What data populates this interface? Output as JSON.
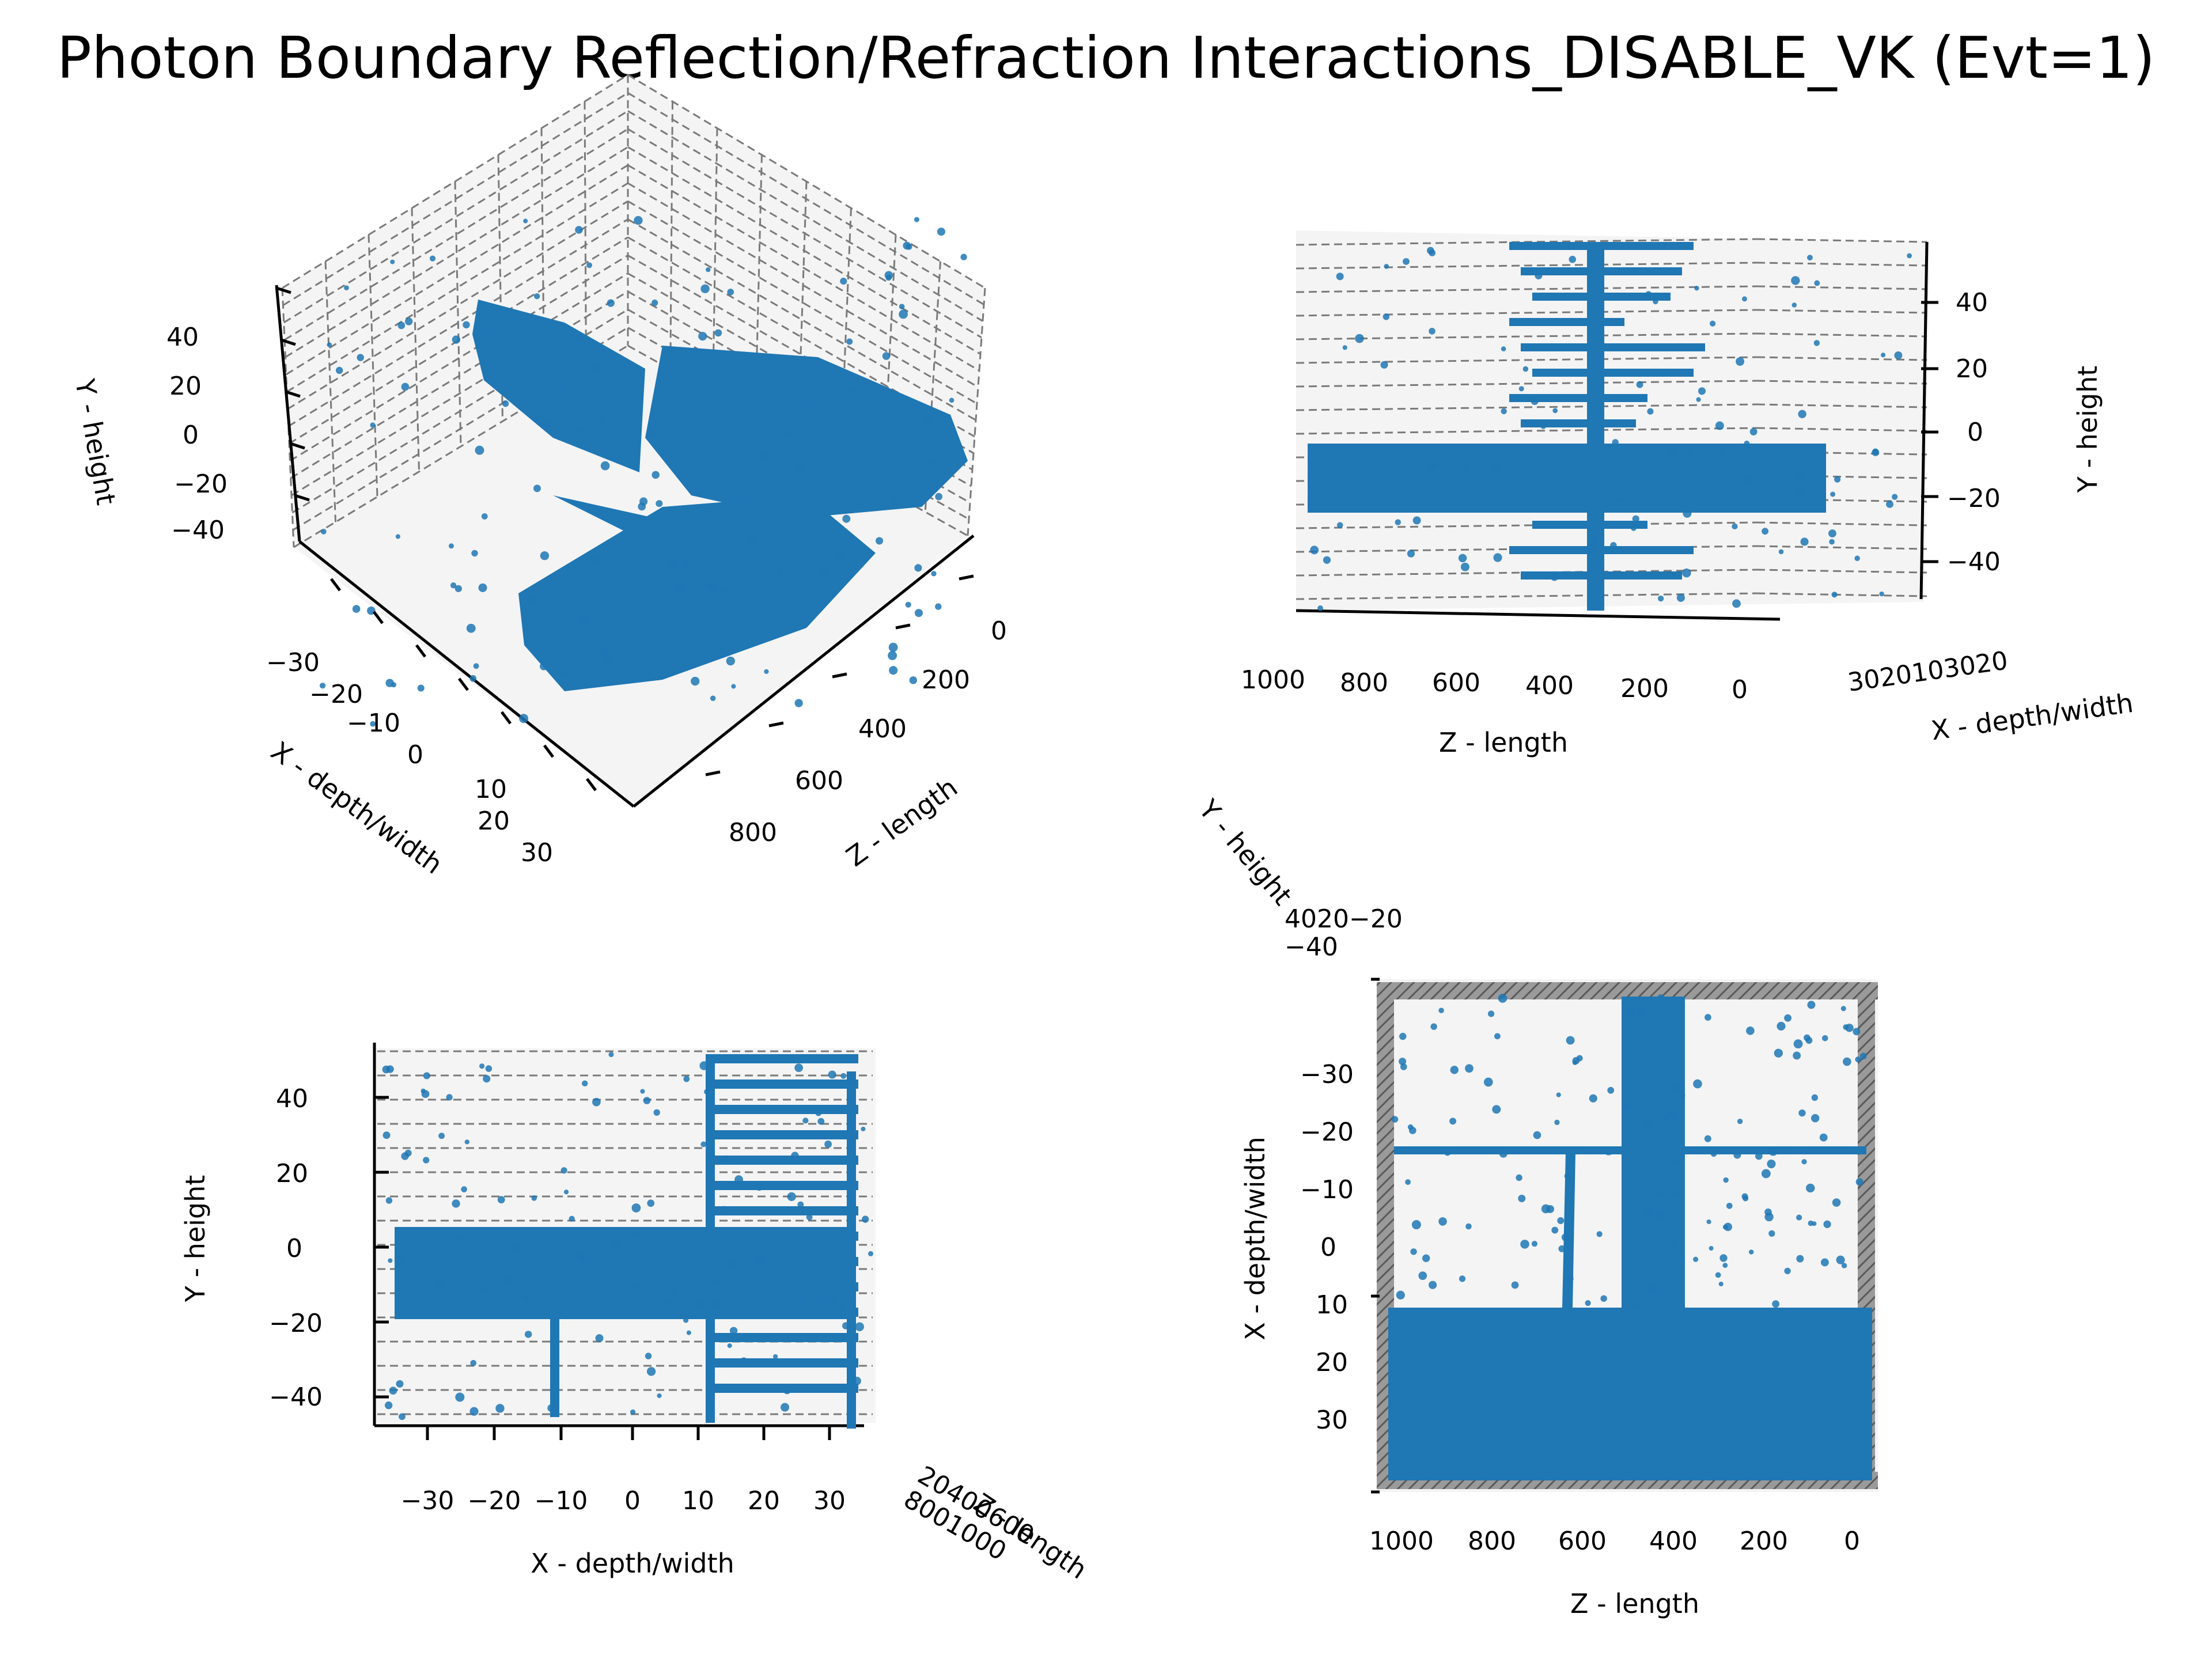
{
  "figure": {
    "title": "Photon Boundary Reflection/Refraction Interactions_DISABLE_VK (Evt=1)"
  },
  "colors": {
    "points": "#1f77b4",
    "pane": "#f4f4f4",
    "grid": "#7a7a7a"
  },
  "chart_data": [
    {
      "type": "scatter",
      "view": "3d-perspective",
      "xlabel": "X - depth/width",
      "ylabel": "Y - height",
      "zlabel": "Z - length",
      "x_ticks": [
        "−30",
        "−20",
        "−10",
        "0",
        "10",
        "20",
        "30"
      ],
      "y_ticks": [
        "40",
        "20",
        "0",
        "−20",
        "−40"
      ],
      "z_ticks": [
        "0",
        "200",
        "400",
        "600",
        "800"
      ],
      "xlim": [
        -35,
        35
      ],
      "ylim": [
        -50,
        50
      ],
      "zlim": [
        0,
        1000
      ]
    },
    {
      "type": "scatter",
      "view": "3d-side (Z vs Y)",
      "xlabel": "Z - length",
      "ylabel": "Y - height",
      "zlabel": "X - depth/width",
      "z_ticks": [
        "1000",
        "800",
        "600",
        "400",
        "200",
        "0"
      ],
      "y_ticks": [
        "40",
        "20",
        "0",
        "−20",
        "−40"
      ],
      "x_ticks_text": "3020103020",
      "xlim": [
        -35,
        35
      ],
      "ylim": [
        -50,
        50
      ],
      "zlim": [
        0,
        1000
      ]
    },
    {
      "type": "scatter",
      "view": "3d-front (X vs Y)",
      "xlabel": "X - depth/width",
      "ylabel": "Y - height",
      "zlabel": "Z - length",
      "x_ticks": [
        "−30",
        "−20",
        "−10",
        "0",
        "10",
        "20",
        "30"
      ],
      "y_ticks": [
        "40",
        "20",
        "0",
        "−20",
        "−40"
      ],
      "z_ticks_text": "20400600\n8001000",
      "xlim": [
        -35,
        35
      ],
      "ylim": [
        -50,
        50
      ],
      "zlim": [
        0,
        1000
      ]
    },
    {
      "type": "scatter",
      "view": "3d-top (Z vs X)",
      "xlabel": "Z - length",
      "ylabel": "X - depth/width",
      "zlabel": "Y - height",
      "z_ticks": [
        "1000",
        "800",
        "600",
        "400",
        "200",
        "0"
      ],
      "x_ticks": [
        "−30",
        "−20",
        "−10",
        "0",
        "10",
        "20",
        "30"
      ],
      "y_ticks_text": "4020−20\n−40",
      "xlim": [
        -35,
        35
      ],
      "ylim": [
        -50,
        50
      ],
      "zlim": [
        0,
        1000
      ]
    }
  ]
}
